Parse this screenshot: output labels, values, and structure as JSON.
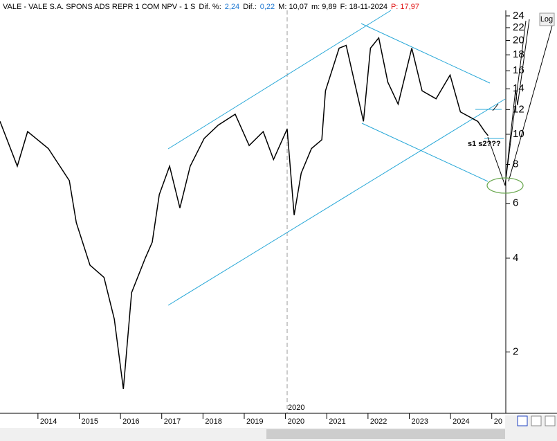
{
  "chart_data": {
    "type": "line",
    "log_scale": true,
    "header": [
      {
        "text": "VALE - VALE S.A. SPONS ADS REPR 1 COM NPV -  1 S",
        "color": "#000000"
      },
      {
        "text": "Dif. %:",
        "color": "#000000"
      },
      {
        "text": "2,24",
        "color": "#1e78d2"
      },
      {
        "text": "Dif.:",
        "color": "#000000"
      },
      {
        "text": "0,22",
        "color": "#1e78d2"
      },
      {
        "text": "M: 10,07",
        "color": "#000000"
      },
      {
        "text": "m: 9,89",
        "color": "#000000"
      },
      {
        "text": "F: 18-11-2024",
        "color": "#000000"
      },
      {
        "text": "P: 17,97",
        "color": "#e01010"
      }
    ],
    "log_button": "Log",
    "cursor_label": "2020",
    "annotation": "s1 s2???",
    "series": [
      {
        "name": "VALE",
        "color": "#000000",
        "x": [
          2013.08,
          2013.5,
          2013.75,
          2014.25,
          2014.76,
          2014.93,
          2015.26,
          2015.6,
          2015.85,
          2016.07,
          2016.27,
          2016.6,
          2016.77,
          2016.94,
          2017.19,
          2017.44,
          2017.69,
          2018.03,
          2018.37,
          2018.78,
          2019.12,
          2019.46,
          2019.71,
          2020.04,
          2020.21,
          2020.38,
          2020.63,
          2020.88,
          2020.97,
          2021.3,
          2021.47,
          2021.72,
          2021.89,
          2022.06,
          2022.26,
          2022.48,
          2022.73,
          2023.06,
          2023.31,
          2023.65,
          2023.99,
          2024.24,
          2024.66,
          2024.83,
          2024.91
        ],
        "values": [
          11,
          7.9,
          10.2,
          9.0,
          7.1,
          5.2,
          3.8,
          3.47,
          2.55,
          1.52,
          3.1,
          4.0,
          4.5,
          6.4,
          7.9,
          5.8,
          7.9,
          9.7,
          10.7,
          11.6,
          9.2,
          10.2,
          8.3,
          10.4,
          5.5,
          7.5,
          9.0,
          9.6,
          13.8,
          18.9,
          19.3,
          13.8,
          11.0,
          18.9,
          20.4,
          14.7,
          12.5,
          18.9,
          13.8,
          13.0,
          15.5,
          11.8,
          11.0,
          10.2,
          9.9
        ]
      }
    ],
    "xlim": [
      2013.08,
      2025.34
    ],
    "xticks": [
      2014,
      2015,
      2016,
      2017,
      2018,
      2019,
      2020,
      2021,
      2022,
      2023,
      2024,
      {
        "value": 2025,
        "label": "20"
      }
    ],
    "ylim": [
      1.27,
      25
    ],
    "yticks": [
      2,
      4,
      6,
      8,
      10,
      12,
      14,
      16,
      18,
      20,
      22,
      24
    ]
  }
}
